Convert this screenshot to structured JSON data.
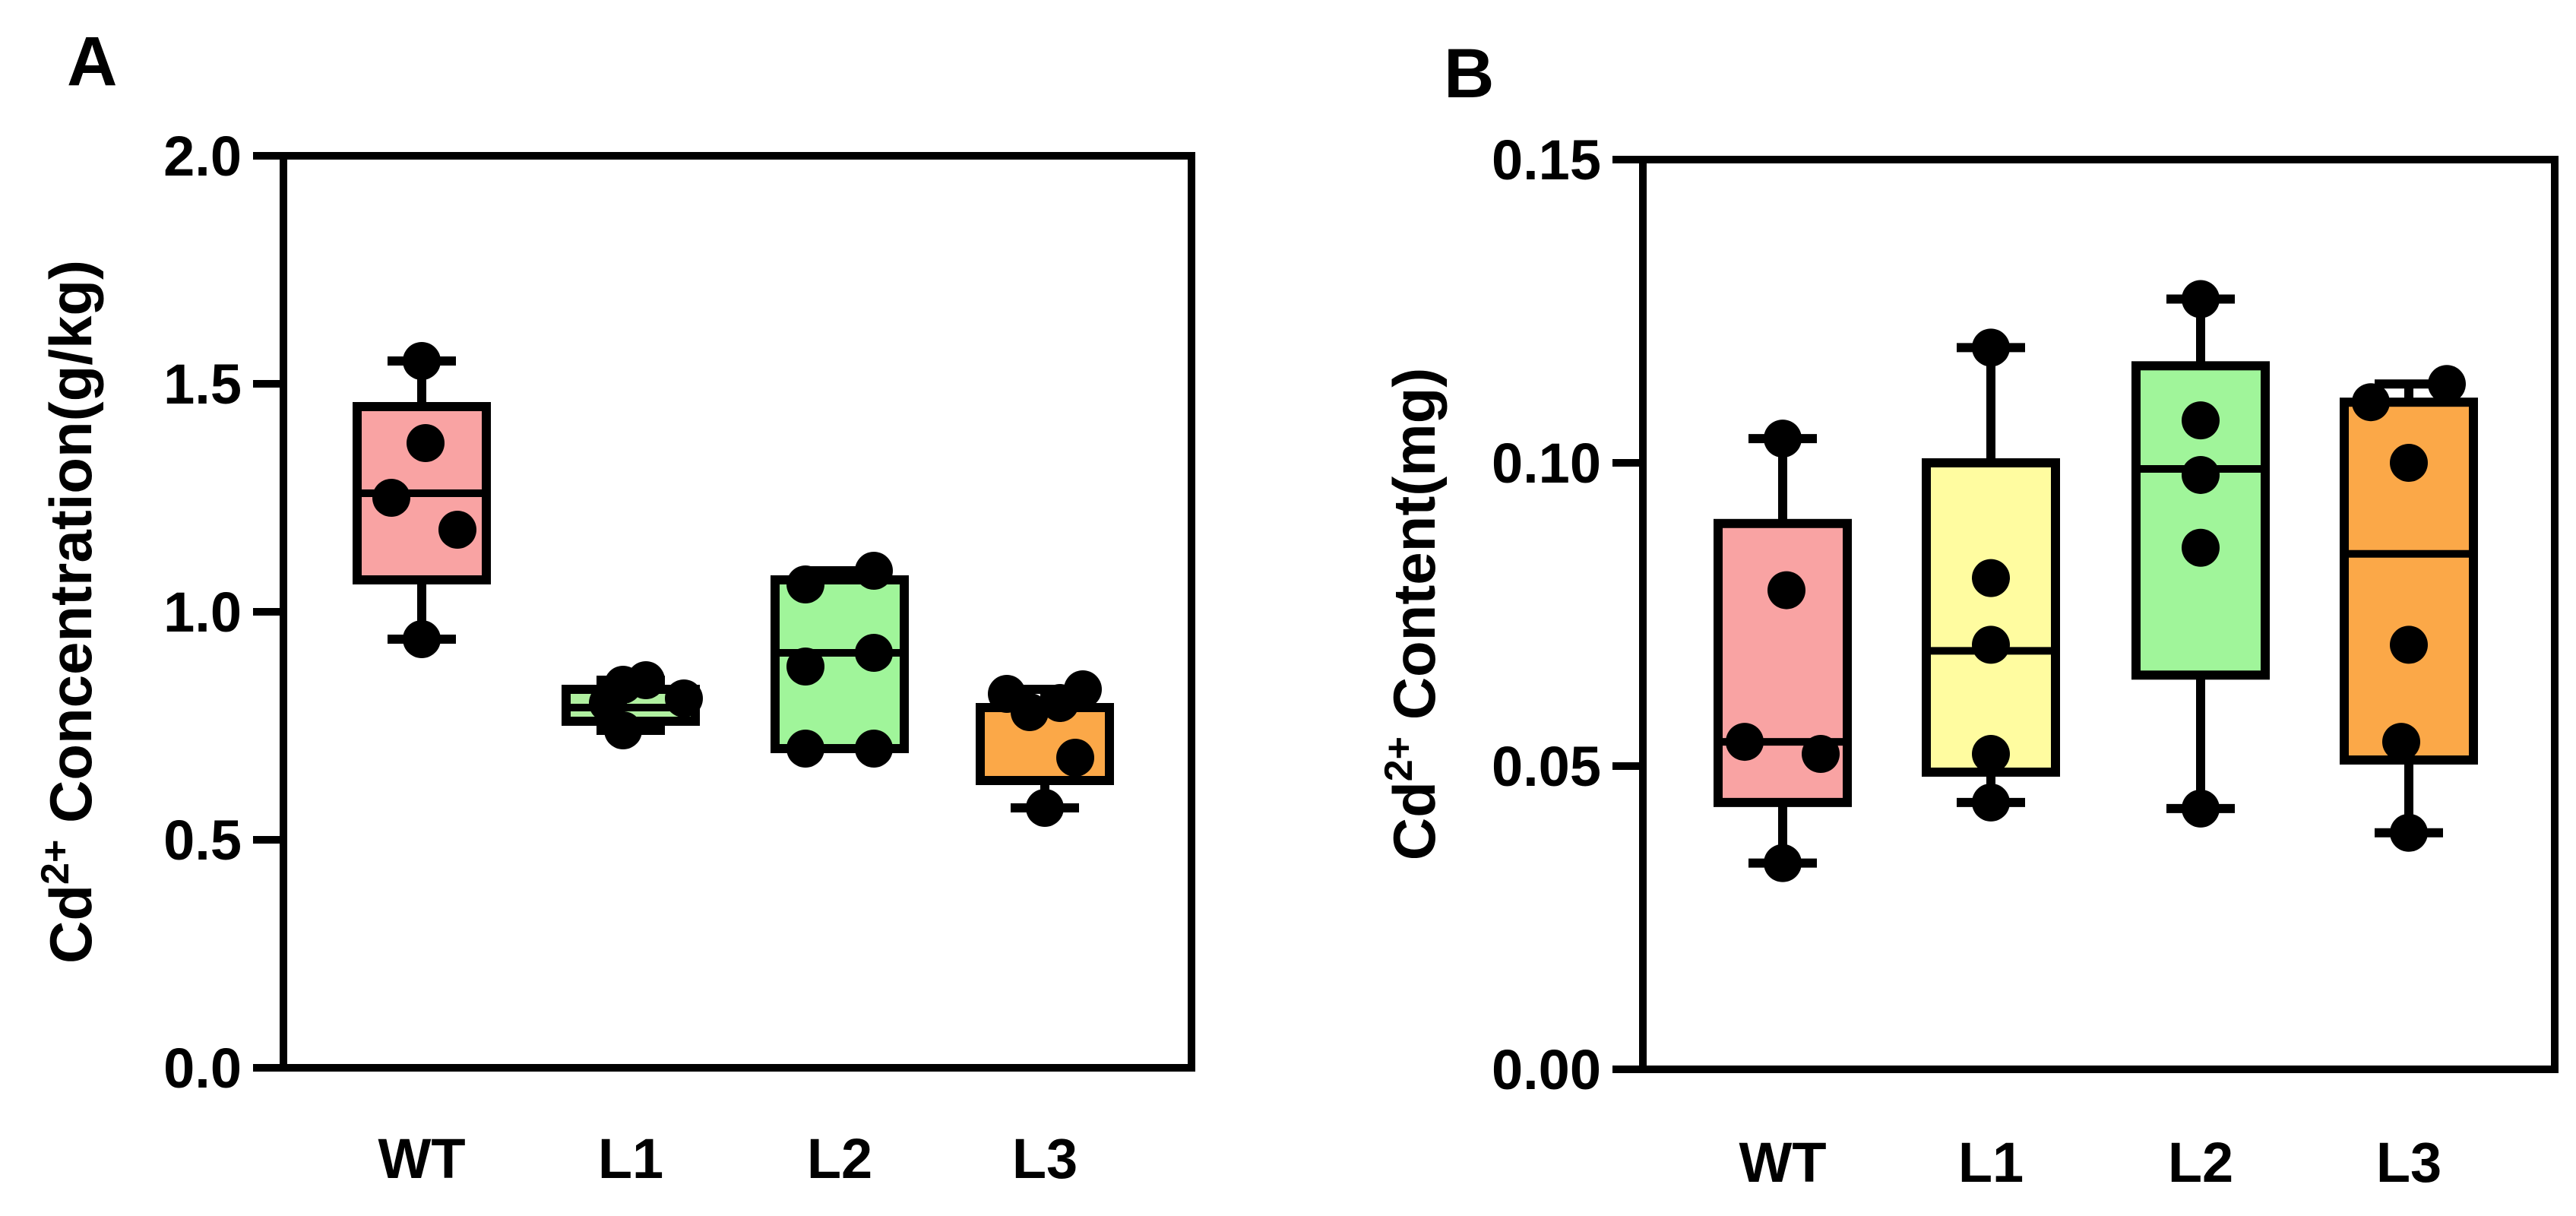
{
  "chart_data": [
    {
      "panel": "A",
      "type": "box",
      "title": "",
      "xlabel": "",
      "ylabel": {
        "prefix": "Cd",
        "superscript": "2+",
        "suffix": " Concentration(g/kg)"
      },
      "ylim": [
        0,
        2.0
      ],
      "yticks": [
        0.0,
        0.5,
        1.0,
        1.5,
        2.0
      ],
      "ytick_labels": [
        "0.0",
        "0.5",
        "1.0",
        "1.5",
        "2.0"
      ],
      "categories": [
        "WT",
        "L1",
        "L2",
        "L3"
      ],
      "colors": [
        "#F9A3A3",
        "#B0F0A0",
        "#A0F59A",
        "#FBA848"
      ],
      "boxes": [
        {
          "min": 0.94,
          "q1": 1.07,
          "median": 1.26,
          "q3": 1.45,
          "max": 1.55
        },
        {
          "min": 0.74,
          "q1": 0.76,
          "median": 0.79,
          "q3": 0.83,
          "max": 0.85
        },
        {
          "min": 0.7,
          "q1": 0.7,
          "median": 0.91,
          "q3": 1.07,
          "max": 1.09
        },
        {
          "min": 0.57,
          "q1": 0.63,
          "median": 0.63,
          "q3": 0.79,
          "max": 0.83
        }
      ],
      "points": [
        [
          {
            "dx": 0,
            "y": 1.55
          },
          {
            "dx": 0.05,
            "y": 1.37
          },
          {
            "dx": -0.4,
            "y": 1.25
          },
          {
            "dx": 0.47,
            "y": 1.18
          },
          {
            "dx": 0,
            "y": 0.94
          }
        ],
        [
          {
            "dx": -0.1,
            "y": 0.84
          },
          {
            "dx": 0.2,
            "y": 0.85
          },
          {
            "dx": 0.7,
            "y": 0.81
          },
          {
            "dx": -0.3,
            "y": 0.8
          },
          {
            "dx": -0.1,
            "y": 0.74
          }
        ],
        [
          {
            "dx": -0.45,
            "y": 1.06
          },
          {
            "dx": 0.45,
            "y": 1.09
          },
          {
            "dx": -0.45,
            "y": 0.88
          },
          {
            "dx": 0.45,
            "y": 0.91
          },
          {
            "dx": -0.45,
            "y": 0.7
          },
          {
            "dx": 0.45,
            "y": 0.7
          }
        ],
        [
          {
            "dx": -0.5,
            "y": 0.82
          },
          {
            "dx": -0.2,
            "y": 0.78
          },
          {
            "dx": 0.2,
            "y": 0.8
          },
          {
            "dx": 0.5,
            "y": 0.83
          },
          {
            "dx": 0.4,
            "y": 0.68
          },
          {
            "dx": 0,
            "y": 0.57
          }
        ]
      ]
    },
    {
      "panel": "B",
      "type": "box",
      "title": "",
      "xlabel": "",
      "ylabel": {
        "prefix": "Cd",
        "superscript": "2+",
        "suffix": " Content(mg)"
      },
      "ylim": [
        0,
        0.15
      ],
      "yticks": [
        0.0,
        0.05,
        0.1,
        0.15
      ],
      "ytick_labels": [
        "0.00",
        "0.05",
        "0.10",
        "0.15"
      ],
      "categories": [
        "WT",
        "L1",
        "L2",
        "L3"
      ],
      "colors": [
        "#F9A3A3",
        "#FFFCA0",
        "#A0F59A",
        "#FBA848"
      ],
      "boxes": [
        {
          "min": 0.034,
          "q1": 0.044,
          "median": 0.054,
          "q3": 0.09,
          "max": 0.104
        },
        {
          "min": 0.044,
          "q1": 0.049,
          "median": 0.069,
          "q3": 0.1,
          "max": 0.119
        },
        {
          "min": 0.043,
          "q1": 0.065,
          "median": 0.099,
          "q3": 0.116,
          "max": 0.127
        },
        {
          "min": 0.039,
          "q1": 0.051,
          "median": 0.085,
          "q3": 0.11,
          "max": 0.113
        }
      ],
      "points": [
        [
          {
            "dx": 0,
            "y": 0.104
          },
          {
            "dx": 0.05,
            "y": 0.079
          },
          {
            "dx": -0.5,
            "y": 0.054
          },
          {
            "dx": 0.5,
            "y": 0.052
          },
          {
            "dx": 0,
            "y": 0.034
          }
        ],
        [
          {
            "dx": 0,
            "y": 0.119
          },
          {
            "dx": 0,
            "y": 0.081
          },
          {
            "dx": 0,
            "y": 0.07
          },
          {
            "dx": 0,
            "y": 0.052
          },
          {
            "dx": 0,
            "y": 0.044
          }
        ],
        [
          {
            "dx": 0,
            "y": 0.127
          },
          {
            "dx": 0,
            "y": 0.107
          },
          {
            "dx": 0,
            "y": 0.098
          },
          {
            "dx": 0,
            "y": 0.086
          },
          {
            "dx": 0,
            "y": 0.043
          }
        ],
        [
          {
            "dx": -0.5,
            "y": 0.11
          },
          {
            "dx": 0.5,
            "y": 0.113
          },
          {
            "dx": 0,
            "y": 0.1
          },
          {
            "dx": 0,
            "y": 0.07
          },
          {
            "dx": -0.1,
            "y": 0.054
          },
          {
            "dx": 0,
            "y": 0.039
          }
        ]
      ]
    }
  ]
}
